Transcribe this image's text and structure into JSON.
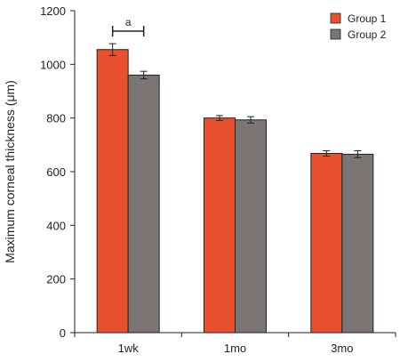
{
  "chart_data": {
    "type": "bar",
    "categories": [
      "1wk",
      "1mo",
      "3mo"
    ],
    "series": [
      {
        "name": "Group 1",
        "values": [
          1055,
          800,
          668
        ],
        "errors": [
          22,
          9,
          10
        ],
        "color": "#e8502e"
      },
      {
        "name": "Group 2",
        "values": [
          960,
          793,
          665
        ],
        "errors": [
          14,
          12,
          13
        ],
        "color": "#7b7574"
      }
    ],
    "ylabel": "Maximum corneal thickness (μm)",
    "xlabel": "",
    "ylim": [
      0,
      1200
    ],
    "yticks": [
      0,
      200,
      400,
      600,
      800,
      1000,
      1200
    ],
    "grid": false,
    "legend": "top-right",
    "annotations": [
      {
        "text": "a",
        "category": "1wk",
        "type": "significance-bracket"
      }
    ]
  }
}
